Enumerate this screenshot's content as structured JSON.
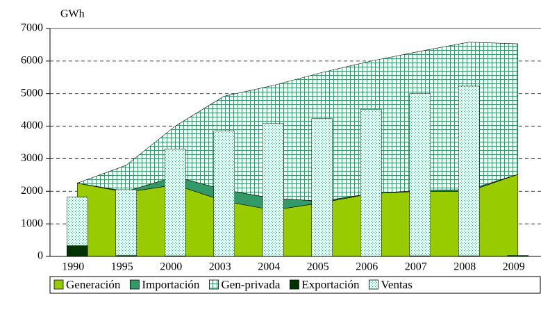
{
  "chart_data": {
    "type": "combo",
    "y_label": "GWh",
    "categories": [
      "1990",
      "1995",
      "2000",
      "2003",
      "2004",
      "2005",
      "2006",
      "2007",
      "2008",
      "2009"
    ],
    "ylim": [
      0,
      7000
    ],
    "yticks": [
      0,
      1000,
      2000,
      3000,
      4000,
      5000,
      6000,
      7000
    ],
    "grid": true,
    "legend": "bottom",
    "series": [
      {
        "name": "Generación",
        "type": "area",
        "color": "#99cc00",
        "values": [
          2250,
          1970,
          2200,
          1700,
          1420,
          1650,
          1930,
          2000,
          2000,
          2520
        ]
      },
      {
        "name": "Importación",
        "type": "area",
        "color": "#339966",
        "values": [
          0,
          30,
          250,
          350,
          360,
          50,
          0,
          30,
          50,
          0
        ]
      },
      {
        "name": "Gen-privada",
        "type": "area",
        "color": "#339966",
        "values": [
          0,
          800,
          1550,
          2870,
          3470,
          3950,
          4070,
          4270,
          4530,
          4010
        ]
      },
      {
        "name": "Exportación",
        "type": "bar",
        "color": "#003300",
        "values": [
          330,
          30,
          20,
          0,
          0,
          0,
          0,
          20,
          20,
          30
        ]
      },
      {
        "name": "Ventas",
        "type": "bar",
        "color": "#339966",
        "values": [
          1490,
          2020,
          3280,
          3850,
          4080,
          4230,
          4520,
          4980,
          5210,
          null
        ]
      }
    ]
  }
}
